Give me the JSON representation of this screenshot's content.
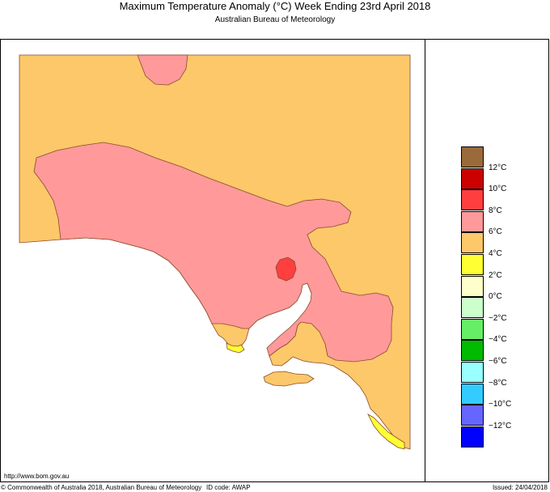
{
  "header": {
    "title": "Maximum Temperature Anomaly (°C)   Week Ending 23rd April 2018",
    "subtitle": "Australian Bureau of Meteorology"
  },
  "colors": {
    "anomaly_4_6": "#fdc869",
    "anomaly_6_8": "#ff999a",
    "anomaly_8_10": "#ff3f3f",
    "anomaly_2_4": "#ffff33",
    "ocean": "#ffffff",
    "border": "#8a4a2a"
  },
  "legend": {
    "swatches": [
      {
        "color": "#9a6a3a",
        "range": "above 12"
      },
      {
        "color": "#cc0000",
        "range": "10 to 12"
      },
      {
        "color": "#ff3f3f",
        "range": "8 to 10"
      },
      {
        "color": "#ff999a",
        "range": "6 to 8"
      },
      {
        "color": "#fdc869",
        "range": "4 to 6"
      },
      {
        "color": "#ffff33",
        "range": "2 to 4"
      },
      {
        "color": "#ffffcc",
        "range": "0 to 2"
      },
      {
        "color": "#ccffcc",
        "range": "-2 to 0"
      },
      {
        "color": "#66ee66",
        "range": "-4 to -2"
      },
      {
        "color": "#00bb00",
        "range": "-6 to -4"
      },
      {
        "color": "#99ffff",
        "range": "-8 to -6"
      },
      {
        "color": "#33ccff",
        "range": "-10 to -8"
      },
      {
        "color": "#6666ff",
        "range": "-12 to -10"
      },
      {
        "color": "#0000ff",
        "range": "below -12"
      }
    ],
    "labels": [
      "12°C",
      "10°C",
      "8°C",
      "6°C",
      "4°C",
      "2°C",
      "0°C",
      "−2°C",
      "−4°C",
      "−6°C",
      "−8°C",
      "−10°C",
      "−12°C"
    ]
  },
  "footer": {
    "url": "http://www.bom.gov.au",
    "copyright": "© Commonwealth of Australia 2018, Australian Bureau of Meteorology",
    "id_code": "ID code: AWAP",
    "issued": "Issued: 24/04/2018"
  }
}
